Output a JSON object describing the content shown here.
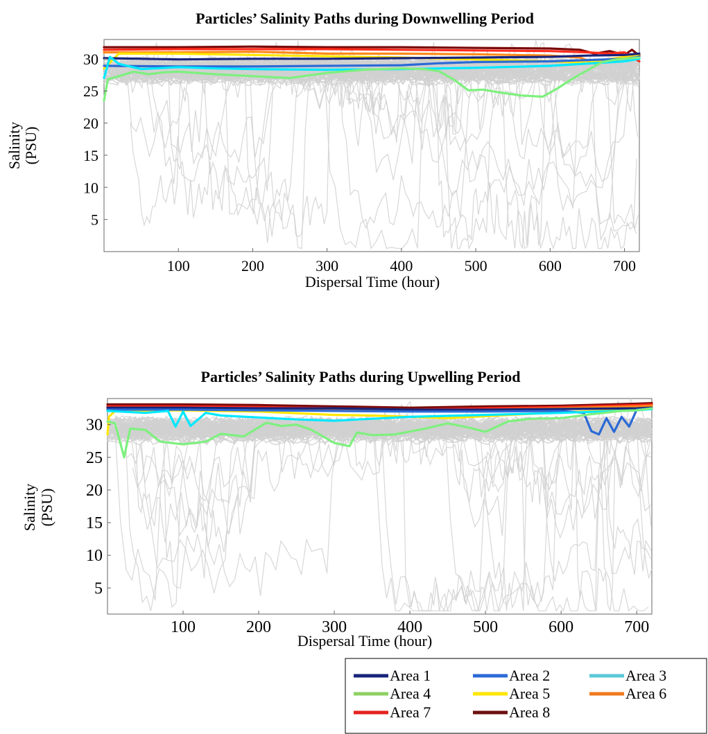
{
  "chart_data": [
    {
      "type": "line",
      "title": "Particles’ Salinity Paths during Downwelling Period",
      "xlabel": "Dispersal Time (hour)",
      "ylabel_line1": "Salinity",
      "ylabel_line2": "(PSU)",
      "xlim": [
        0,
        720
      ],
      "ylim": [
        0,
        33
      ],
      "xticks": [
        100,
        200,
        300,
        400,
        500,
        600,
        700
      ],
      "yticks": [
        5,
        10,
        15,
        20,
        25,
        30
      ],
      "grid": false,
      "background_traces_color": "#d0d0d0",
      "series": [
        {
          "name": "Area 8",
          "color": "#7a0a0a",
          "x": [
            0,
            100,
            200,
            300,
            400,
            500,
            600,
            640,
            660,
            680,
            700,
            710,
            720
          ],
          "y": [
            31.8,
            31.8,
            31.9,
            31.8,
            31.8,
            31.7,
            31.6,
            31.4,
            30.8,
            31.2,
            30.6,
            31.4,
            30.5
          ]
        },
        {
          "name": "Area 7",
          "color": "#ff2a1a",
          "x": [
            0,
            100,
            200,
            300,
            400,
            500,
            600,
            650,
            680,
            700,
            720
          ],
          "y": [
            31.4,
            31.5,
            31.5,
            31.5,
            31.4,
            31.3,
            31.2,
            31.0,
            30.8,
            31.0,
            29.6
          ]
        },
        {
          "name": "Area 6",
          "color": "#ff8a1a",
          "x": [
            0,
            100,
            200,
            300,
            400,
            500,
            600,
            640,
            660,
            680,
            720
          ],
          "y": [
            31.0,
            31.0,
            31.1,
            30.8,
            30.8,
            30.7,
            30.5,
            30.2,
            29.3,
            29.8,
            30.2
          ]
        },
        {
          "name": "Area 5",
          "color": "#ffe600",
          "x": [
            0,
            20,
            100,
            200,
            300,
            400,
            500,
            600,
            650,
            700,
            720
          ],
          "y": [
            28.5,
            30.8,
            30.8,
            30.6,
            30.4,
            30.2,
            29.9,
            29.6,
            29.4,
            30.3,
            30.7
          ]
        },
        {
          "name": "Area 1",
          "color": "#18247a",
          "x": [
            0,
            100,
            200,
            300,
            400,
            500,
            600,
            650,
            700,
            720
          ],
          "y": [
            30.1,
            29.9,
            30.0,
            30.0,
            30.1,
            30.2,
            30.3,
            30.5,
            30.6,
            30.8
          ]
        },
        {
          "name": "Area 2",
          "color": "#2b6ad6",
          "x": [
            0,
            100,
            200,
            300,
            400,
            450,
            500,
            600,
            650,
            700,
            720
          ],
          "y": [
            28.9,
            28.8,
            28.8,
            28.9,
            29.0,
            29.3,
            29.5,
            29.6,
            29.8,
            30.0,
            30.3
          ]
        },
        {
          "name": "Area 3",
          "color": "#00e8ff",
          "x": [
            0,
            8,
            20,
            50,
            100,
            150,
            200,
            300,
            400,
            500,
            600,
            700,
            720
          ],
          "y": [
            27.0,
            30.3,
            29.2,
            28.4,
            28.7,
            28.5,
            28.4,
            28.3,
            28.4,
            28.6,
            28.9,
            29.6,
            30.0
          ]
        },
        {
          "name": "Area 4",
          "color": "#7ef07e",
          "x": [
            0,
            5,
            20,
            40,
            60,
            80,
            100,
            150,
            200,
            250,
            300,
            350,
            400,
            430,
            450,
            470,
            490,
            510,
            530,
            560,
            590,
            610,
            630,
            650,
            670,
            690,
            720
          ],
          "y": [
            23.5,
            26.8,
            27.3,
            28.0,
            27.6,
            27.9,
            28.0,
            27.6,
            27.3,
            27.0,
            27.8,
            28.3,
            28.5,
            28.4,
            28.1,
            26.8,
            25.1,
            25.2,
            24.8,
            24.3,
            24.1,
            25.4,
            26.9,
            28.2,
            29.5,
            29.9,
            30.2
          ]
        }
      ]
    },
    {
      "type": "line",
      "title": "Particles’ Salinity Paths during Upwelling Period",
      "xlabel": "Dispersal Time (hour)",
      "ylabel_line1": "Salinity",
      "ylabel_line2": "(PSU)",
      "xlim": [
        0,
        720
      ],
      "ylim": [
        1,
        34
      ],
      "xticks": [
        100,
        200,
        300,
        400,
        500,
        600,
        700
      ],
      "yticks": [
        5,
        10,
        15,
        20,
        25,
        30
      ],
      "grid": false,
      "background_traces_color": "#d0d0d0",
      "series": [
        {
          "name": "Area 8",
          "color": "#7a0a0a",
          "x": [
            0,
            100,
            200,
            300,
            400,
            500,
            600,
            700,
            720
          ],
          "y": [
            33.1,
            33.1,
            33.0,
            32.8,
            32.6,
            32.8,
            32.9,
            33.2,
            33.3
          ]
        },
        {
          "name": "Area 7",
          "color": "#ff2a1a",
          "x": [
            0,
            100,
            200,
            300,
            400,
            500,
            600,
            700,
            720
          ],
          "y": [
            32.8,
            32.8,
            32.7,
            32.5,
            32.3,
            32.5,
            32.7,
            33.0,
            33.1
          ]
        },
        {
          "name": "Area 6",
          "color": "#ff8a1a",
          "x": [
            0,
            100,
            200,
            300,
            400,
            500,
            600,
            700,
            720
          ],
          "y": [
            32.5,
            32.5,
            32.4,
            32.2,
            32.1,
            32.3,
            32.5,
            32.8,
            32.9
          ]
        },
        {
          "name": "Area 5",
          "color": "#ffe600",
          "x": [
            0,
            2,
            10,
            100,
            200,
            300,
            350,
            400,
            450,
            500,
            600,
            700,
            720
          ],
          "y": [
            28.5,
            31.2,
            32.1,
            32.2,
            32.0,
            31.5,
            31.4,
            31.2,
            31.0,
            31.3,
            31.9,
            32.3,
            32.5
          ]
        },
        {
          "name": "Area 1",
          "color": "#18247a",
          "x": [
            0,
            100,
            200,
            300,
            400,
            500,
            600,
            700,
            720
          ],
          "y": [
            32.6,
            32.6,
            32.5,
            32.5,
            32.3,
            32.3,
            32.4,
            32.5,
            32.6
          ]
        },
        {
          "name": "Area 2",
          "color": "#2b6ad6",
          "x": [
            0,
            100,
            200,
            300,
            400,
            500,
            600,
            630,
            640,
            650,
            660,
            670,
            680,
            690,
            700,
            720
          ],
          "y": [
            32.3,
            32.3,
            32.2,
            32.1,
            32.0,
            32.0,
            32.1,
            31.8,
            29.0,
            28.5,
            31.0,
            28.9,
            31.2,
            29.7,
            32.3,
            32.5
          ]
        },
        {
          "name": "Area 3",
          "color": "#00e8ff",
          "x": [
            0,
            50,
            80,
            90,
            100,
            110,
            130,
            150,
            200,
            250,
            300,
            350,
            400,
            500,
            600,
            700,
            720
          ],
          "y": [
            32.1,
            31.8,
            32.1,
            29.7,
            32.0,
            29.8,
            31.8,
            31.4,
            31.1,
            30.8,
            30.6,
            30.9,
            31.2,
            31.5,
            31.8,
            32.2,
            32.4
          ]
        },
        {
          "name": "Area 4",
          "color": "#7ef07e",
          "x": [
            0,
            10,
            22,
            30,
            50,
            70,
            100,
            130,
            150,
            180,
            210,
            230,
            250,
            270,
            300,
            320,
            330,
            350,
            380,
            420,
            450,
            480,
            500,
            530,
            560,
            600,
            640,
            680,
            700,
            720
          ],
          "y": [
            30.5,
            30.2,
            25.0,
            29.4,
            29.2,
            27.4,
            27.0,
            27.4,
            28.6,
            28.2,
            30.3,
            29.8,
            30.0,
            29.2,
            27.2,
            26.7,
            28.8,
            28.4,
            28.5,
            29.4,
            30.2,
            29.5,
            28.9,
            30.5,
            30.9,
            31.0,
            31.6,
            32.1,
            32.2,
            32.5
          ]
        }
      ]
    }
  ],
  "legend": {
    "placement": "bottom-right",
    "entries": [
      {
        "label": "Area 1",
        "color": "#18247a"
      },
      {
        "label": "Area 2",
        "color": "#2b6ad6"
      },
      {
        "label": "Area 3",
        "color": "#5bc8d8"
      },
      {
        "label": "Area 4",
        "color": "#8ed163"
      },
      {
        "label": "Area 5",
        "color": "#ffe600"
      },
      {
        "label": "Area 6",
        "color": "#f07a1e"
      },
      {
        "label": "Area 7",
        "color": "#e5221f"
      },
      {
        "label": "Area 8",
        "color": "#6e1010"
      }
    ]
  }
}
